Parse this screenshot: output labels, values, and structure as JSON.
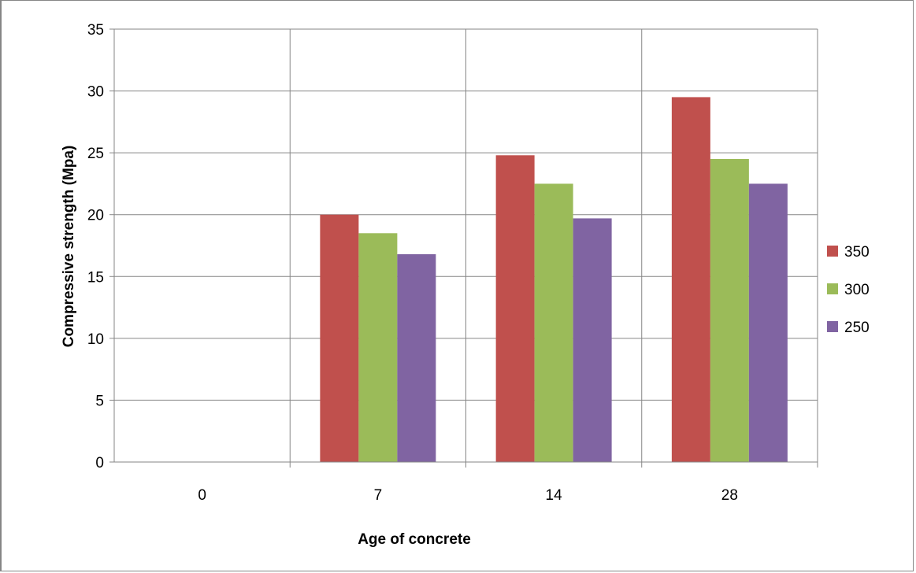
{
  "chart_data": {
    "type": "bar",
    "title": "",
    "xlabel": "Age of concrete",
    "ylabel": "Compressive strength (Mpa)",
    "categories": [
      "0",
      "7",
      "14",
      "28"
    ],
    "series": [
      {
        "name": "350",
        "color": "#C0504D",
        "values": [
          0,
          20,
          24.8,
          29.5
        ]
      },
      {
        "name": "300",
        "color": "#9BBB59",
        "values": [
          0,
          18.5,
          22.5,
          24.5
        ]
      },
      {
        "name": "250",
        "color": "#8064A2",
        "values": [
          0,
          16.8,
          19.7,
          22.5
        ]
      }
    ],
    "ylim": [
      0,
      35
    ],
    "yticks": [
      0,
      5,
      10,
      15,
      20,
      25,
      30,
      35
    ],
    "grid": "horizontal and vertical",
    "legend_position": "right"
  }
}
